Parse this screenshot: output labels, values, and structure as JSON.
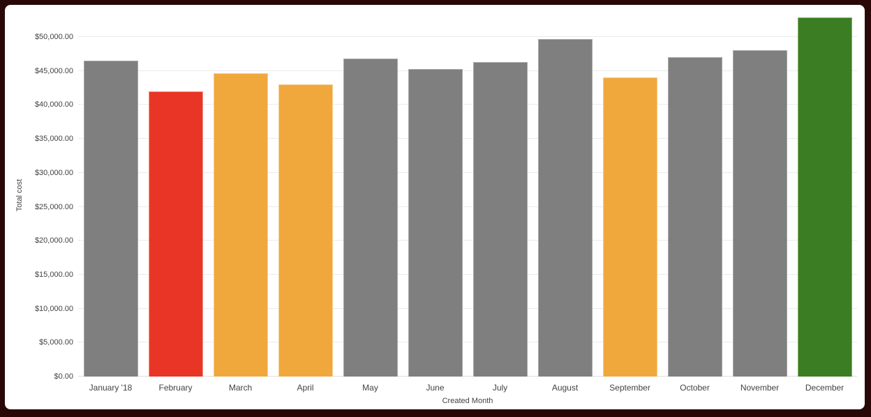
{
  "colors": {
    "frame": "#2a0807",
    "card_bg": "#ffffff",
    "gridline": "#ebebeb",
    "baseline": "#dedede",
    "text": "#424242",
    "palette": {
      "gray": {
        "fill": "#7f7f7f",
        "border": "#a9a9a9"
      },
      "red": {
        "fill": "#e93525",
        "border": "#f29a8d"
      },
      "orange": {
        "fill": "#f0a83d",
        "border": "#f6cd8f"
      },
      "green": {
        "fill": "#3b7d23",
        "border": "#83b066"
      }
    }
  },
  "chart_data": {
    "type": "bar",
    "title": "",
    "xlabel": "Created Month",
    "ylabel": "Total cost",
    "categories": [
      "January '18",
      "February",
      "March",
      "April",
      "May",
      "June",
      "July",
      "August",
      "September",
      "October",
      "November",
      "December"
    ],
    "values": [
      46500,
      42000,
      44650,
      43050,
      46850,
      45250,
      46300,
      49700,
      44000,
      47000,
      48000,
      52900
    ],
    "bar_colors": [
      "gray",
      "red",
      "orange",
      "orange",
      "gray",
      "gray",
      "gray",
      "gray",
      "orange",
      "gray",
      "gray",
      "green"
    ],
    "y_axis": {
      "tick_values": [
        0,
        5000,
        10000,
        15000,
        20000,
        25000,
        30000,
        35000,
        40000,
        45000,
        50000
      ],
      "tick_labels": [
        "$0.00",
        "$5,000.00",
        "$10,000.00",
        "$15,000.00",
        "$20,000.00",
        "$25,000.00",
        "$30,000.00",
        "$35,000.00",
        "$40,000.00",
        "$45,000.00",
        "$50,000.00"
      ]
    },
    "ylim": [
      0,
      53400
    ],
    "grid": true,
    "legend": "none"
  }
}
